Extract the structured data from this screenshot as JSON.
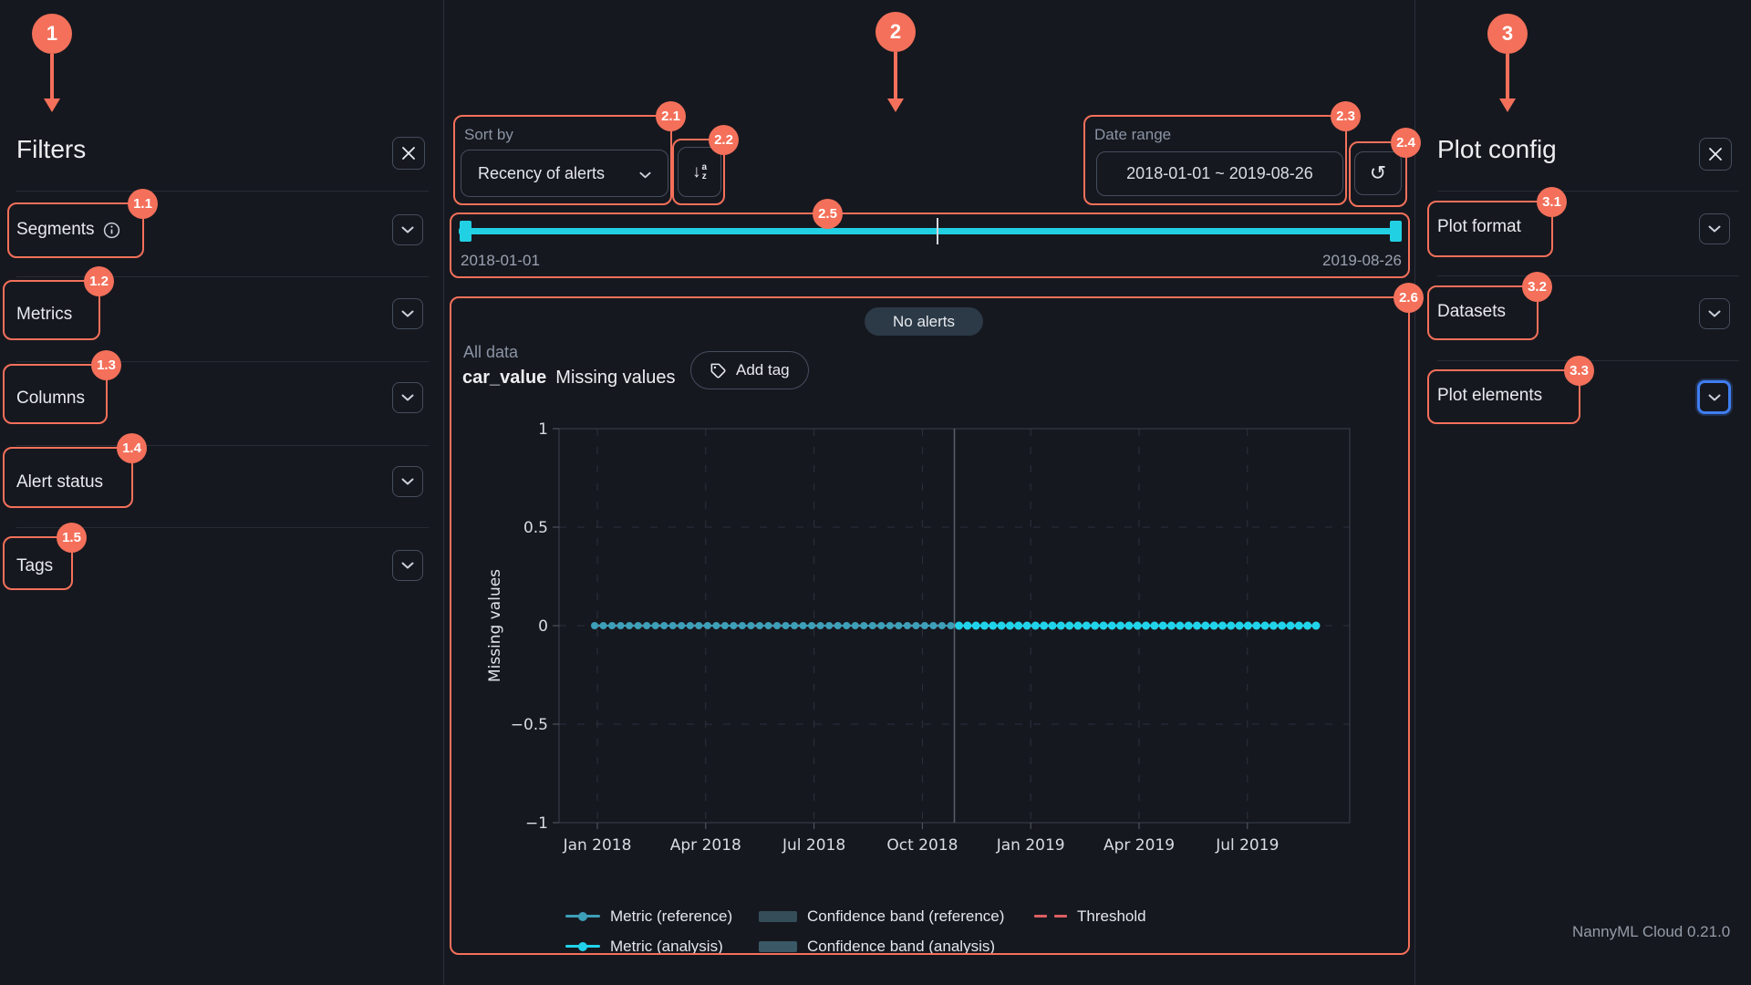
{
  "app": {
    "version_label": "NannyML Cloud 0.21.0"
  },
  "filters_panel": {
    "title": "Filters",
    "sections": [
      {
        "label": "Segments",
        "badge": "1.1",
        "has_info": true
      },
      {
        "label": "Metrics",
        "badge": "1.2"
      },
      {
        "label": "Columns",
        "badge": "1.3"
      },
      {
        "label": "Alert status",
        "badge": "1.4"
      },
      {
        "label": "Tags",
        "badge": "1.5"
      }
    ]
  },
  "toolbar": {
    "sort": {
      "label": "Sort by",
      "value": "Recency of alerts",
      "badge": "2.1"
    },
    "sort_direction_badge": "2.2",
    "date_range": {
      "label": "Date range",
      "value": "2018-01-01 ~ 2019-08-26",
      "badge": "2.3"
    },
    "reset_badge": "2.4"
  },
  "timeline": {
    "start_label": "2018-01-01",
    "end_label": "2019-08-26",
    "badge": "2.5"
  },
  "chart_card": {
    "badge": "2.6",
    "status_badge": "No alerts",
    "segment_label": "All data",
    "column_name": "car_value",
    "metric_label": "Missing values",
    "add_tag_label": "Add tag"
  },
  "chart_data": {
    "type": "line",
    "title": "car_value Missing values",
    "ylabel": "Missing values",
    "ylim": [
      -1,
      1
    ],
    "yticks": [
      1,
      0.5,
      0,
      -0.5,
      -1
    ],
    "x_tick_labels": [
      "Jan 2018",
      "Apr 2018",
      "Jul 2018",
      "Oct 2018",
      "Jan 2019",
      "Apr 2019",
      "Jul 2019"
    ],
    "x_range": [
      "2018-01-01",
      "2019-08-26"
    ],
    "grid": "dashed",
    "reference_analysis_split_fraction": 0.5,
    "series": [
      {
        "name": "Metric (reference)",
        "constant_value": 0,
        "n_points": 42,
        "color": "#3d9fb8"
      },
      {
        "name": "Metric (analysis)",
        "constant_value": 0,
        "n_points": 43,
        "color": "#21d3ea"
      }
    ],
    "bands": [
      {
        "name": "Confidence band (reference)",
        "color": "#344d59"
      },
      {
        "name": "Confidence band (analysis)",
        "color": "#3a5866"
      }
    ],
    "threshold": {
      "name": "Threshold",
      "value": 0,
      "color": "#dd5f63"
    },
    "legend_position": "bottom"
  },
  "plot_config_panel": {
    "title": "Plot config",
    "sections": [
      {
        "label": "Plot format",
        "badge": "3.1"
      },
      {
        "label": "Datasets",
        "badge": "3.2"
      },
      {
        "label": "Plot elements",
        "badge": "3.3",
        "focused": true
      }
    ]
  },
  "annotations": {
    "color": "#f4705a",
    "main": [
      "1",
      "2",
      "3"
    ]
  }
}
